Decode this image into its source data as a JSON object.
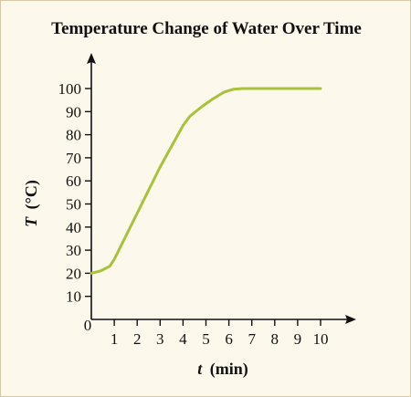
{
  "chart_data": {
    "type": "line",
    "title": "Temperature Change of Water Over Time",
    "xlabel_var": "t",
    "xlabel_unit": "(min)",
    "ylabel_var": "T",
    "ylabel_unit": "(°C)",
    "origin_label": "0",
    "xlim": [
      0,
      10
    ],
    "ylim": [
      0,
      100
    ],
    "x_ticks": [
      1,
      2,
      3,
      4,
      5,
      6,
      7,
      8,
      9,
      10
    ],
    "y_ticks": [
      10,
      20,
      30,
      40,
      50,
      60,
      70,
      80,
      90,
      100
    ],
    "grid": false,
    "series": [
      {
        "color": "#a8c23a",
        "x": [
          0,
          0.4,
          0.8,
          1.0,
          1.5,
          2.0,
          2.5,
          3.0,
          3.5,
          4.0,
          4.3,
          4.8,
          5.3,
          5.8,
          6.2,
          6.6,
          7.0,
          8.0,
          9.0,
          10.0
        ],
        "y": [
          20,
          21,
          23,
          26,
          36,
          46,
          56,
          66,
          75,
          84,
          88,
          92,
          95.5,
          98.5,
          99.7,
          100,
          100,
          100,
          100,
          100
        ]
      }
    ]
  }
}
